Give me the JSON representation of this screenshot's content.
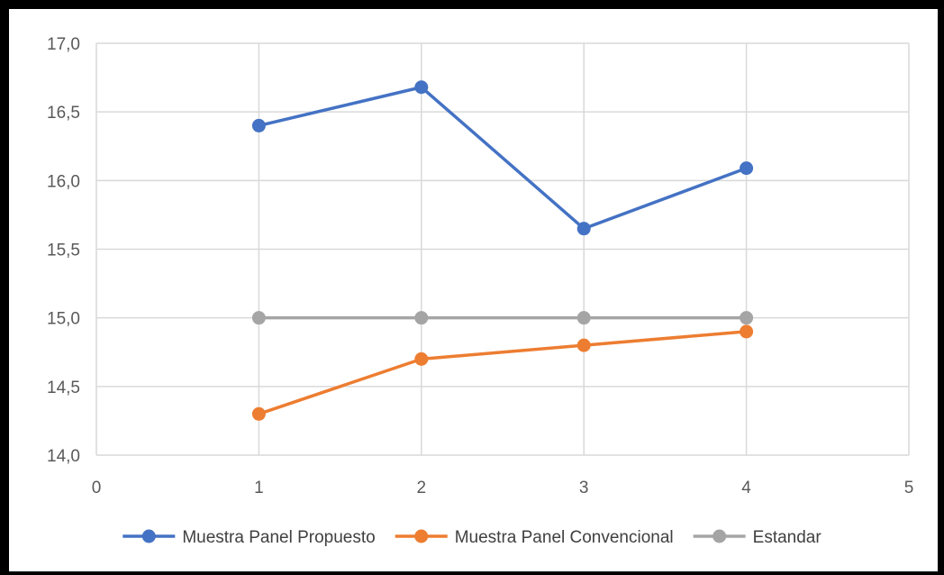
{
  "chart_data": {
    "type": "scatter",
    "title": "",
    "xlabel": "",
    "ylabel": "",
    "xlim": [
      0,
      5
    ],
    "ylim": [
      14.0,
      17.0
    ],
    "x_ticks": [
      0,
      1,
      2,
      3,
      4,
      5
    ],
    "x_tick_labels": [
      "0",
      "1",
      "2",
      "3",
      "4",
      "5"
    ],
    "y_ticks": [
      14.0,
      14.5,
      15.0,
      15.5,
      16.0,
      16.5,
      17.0
    ],
    "y_tick_labels": [
      "14,0",
      "14,5",
      "15,0",
      "15,5",
      "16,0",
      "16,5",
      "17,0"
    ],
    "grid": true,
    "legend_position": "bottom",
    "series": [
      {
        "name": "Muestra Panel Propuesto",
        "color": "#4472C4",
        "x": [
          1,
          2,
          3,
          4
        ],
        "y": [
          16.4,
          16.68,
          15.65,
          16.09
        ]
      },
      {
        "name": "Muestra Panel Convencional",
        "color": "#ED7D31",
        "x": [
          1,
          2,
          3,
          4
        ],
        "y": [
          14.3,
          14.7,
          14.8,
          14.9
        ]
      },
      {
        "name": "Estandar",
        "color": "#A5A5A5",
        "x": [
          1,
          2,
          3,
          4
        ],
        "y": [
          15.0,
          15.0,
          15.0,
          15.0
        ]
      }
    ]
  }
}
